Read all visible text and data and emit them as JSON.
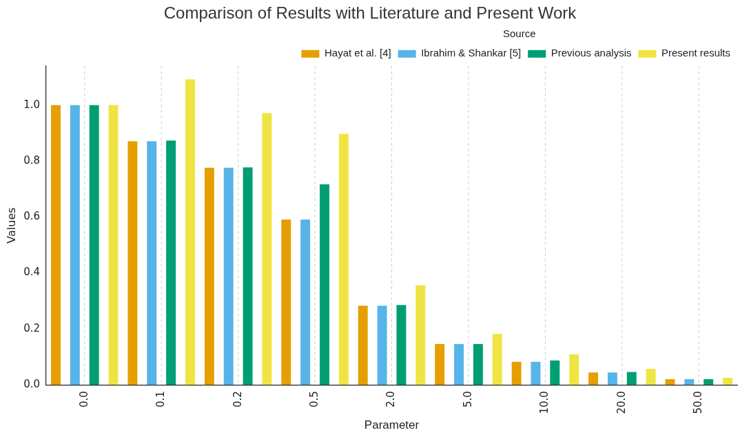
{
  "chart_data": {
    "type": "bar",
    "title": "Comparison of Results with Literature and Present Work",
    "xlabel": "Parameter",
    "ylabel": "Values",
    "legend_title": "Source",
    "legend": "top right",
    "grid": "x",
    "categories": [
      "0.0",
      "0.1",
      "0.2",
      "0.5",
      "2.0",
      "5.0",
      "10.0",
      "20.0",
      "50.0"
    ],
    "ylim": [
      0,
      1.14
    ],
    "yticks": [
      {
        "value": 0,
        "label": "0.0"
      },
      {
        "value": 0.2,
        "label": "0.2"
      },
      {
        "value": 0.4,
        "label": "0.4"
      },
      {
        "value": 0.6,
        "label": "0.6"
      },
      {
        "value": 0.8,
        "label": "0.8"
      },
      {
        "value": 1,
        "label": "1.0"
      }
    ],
    "series": [
      {
        "name": "Hayat et al. [4]",
        "color": "#e69f00",
        "values": [
          1.0,
          0.871,
          0.776,
          0.591,
          0.283,
          0.146,
          0.082,
          0.044,
          0.02
        ]
      },
      {
        "name": "Ibrahim & Shankar [5]",
        "color": "#56b4e9",
        "values": [
          1.0,
          0.871,
          0.776,
          0.591,
          0.283,
          0.146,
          0.082,
          0.044,
          0.02
        ]
      },
      {
        "name": "Previous analysis",
        "color": "#009e73",
        "values": [
          1.0,
          0.873,
          0.777,
          0.717,
          0.285,
          0.146,
          0.087,
          0.046,
          0.02
        ]
      },
      {
        "name": "Present results",
        "color": "#f0e442",
        "values": [
          1.0,
          1.092,
          0.971,
          0.897,
          0.356,
          0.182,
          0.109,
          0.057,
          0.025
        ]
      }
    ]
  }
}
